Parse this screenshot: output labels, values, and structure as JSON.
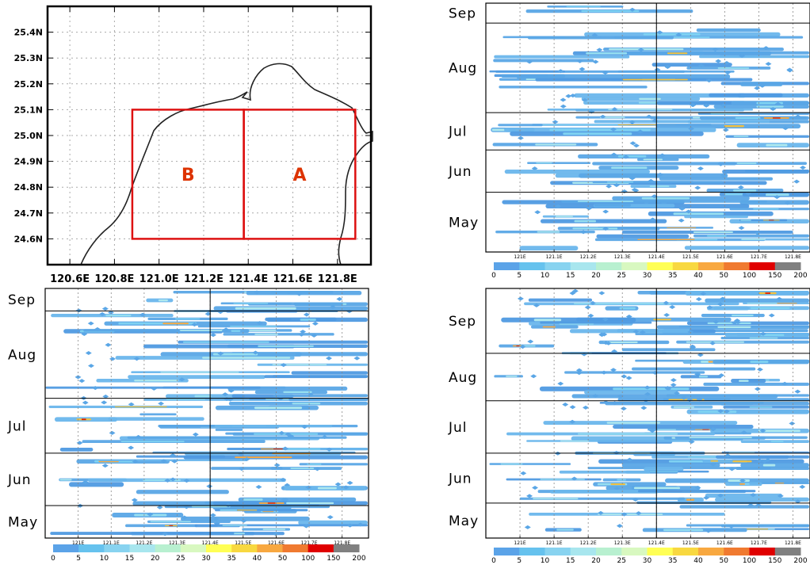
{
  "map": {
    "xticks": [
      "120.6E",
      "120.8E",
      "121.0E",
      "121.2E",
      "121.4E",
      "121.6E",
      "121.8E"
    ],
    "xtick_values": [
      120.6,
      120.8,
      121.0,
      121.2,
      121.4,
      121.6,
      121.8
    ],
    "yticks": [
      "24.6N",
      "24.7N",
      "24.8N",
      "24.9N",
      "25.0N",
      "25.1N",
      "25.2N",
      "25.3N",
      "25.4N"
    ],
    "ytick_values": [
      24.6,
      24.7,
      24.8,
      24.9,
      25.0,
      25.1,
      25.2,
      25.3,
      25.4
    ],
    "xlim": [
      120.5,
      121.95
    ],
    "ylim": [
      24.5,
      25.5
    ],
    "regions": [
      {
        "label": "B",
        "lon": [
          120.88,
          121.38
        ],
        "lat": [
          24.6,
          25.1
        ]
      },
      {
        "label": "A",
        "lon": [
          121.38,
          121.88
        ],
        "lat": [
          24.6,
          25.1
        ]
      }
    ],
    "box_color": "#dd1111",
    "label_color": "#dd3300"
  },
  "chart_data": [
    {
      "type": "heatmap",
      "panel": "top-right",
      "x_ticks": [
        "121E",
        "121.1E",
        "121.2E",
        "121.3E",
        "121.4E",
        "121.5E",
        "121.6E",
        "121.7E",
        "121.8E"
      ],
      "x_tick_values": [
        121.0,
        121.1,
        121.2,
        121.3,
        121.4,
        121.5,
        121.6,
        121.7,
        121.8
      ],
      "xlim": [
        120.9,
        121.85
      ],
      "divider_x": 121.4,
      "y_labels": [
        "Sep",
        "Aug",
        "Jul",
        "Jun",
        "May"
      ],
      "month_boundaries": [
        0.08,
        0.44,
        0.59,
        0.76
      ],
      "grid": "vertical dotted",
      "colorbar": {
        "labels": [
          "0",
          "5",
          "10",
          "15",
          "20",
          "25",
          "30",
          "35",
          "40",
          "50",
          "100",
          "150",
          "200"
        ]
      }
    },
    {
      "type": "heatmap",
      "panel": "bottom-left",
      "x_ticks": [
        "121E",
        "121.1E",
        "121.2E",
        "121.3E",
        "121.4E",
        "121.5E",
        "121.6E",
        "121.7E",
        "121.8E"
      ],
      "x_tick_values": [
        121.0,
        121.1,
        121.2,
        121.3,
        121.4,
        121.5,
        121.6,
        121.7,
        121.8
      ],
      "xlim": [
        120.9,
        121.88
      ],
      "divider_x": 121.4,
      "y_labels": [
        "Sep",
        "Aug",
        "Jul",
        "Jun",
        "May"
      ],
      "month_boundaries": [
        0.09,
        0.44,
        0.66,
        0.87
      ],
      "grid": "vertical dotted",
      "colorbar": {
        "labels": [
          "0",
          "5",
          "10",
          "15",
          "20",
          "25",
          "30",
          "35",
          "40",
          "50",
          "100",
          "150",
          "200"
        ]
      }
    },
    {
      "type": "heatmap",
      "panel": "bottom-right",
      "x_ticks": [
        "121E",
        "121.1E",
        "121.2E",
        "121.3E",
        "121.4E",
        "121.5E",
        "121.6E",
        "121.7E",
        "121.8E"
      ],
      "x_tick_values": [
        121.0,
        121.1,
        121.2,
        121.3,
        121.4,
        121.5,
        121.6,
        121.7,
        121.8
      ],
      "xlim": [
        120.9,
        121.85
      ],
      "divider_x": 121.4,
      "y_labels": [
        "Sep",
        "Aug",
        "Jul",
        "Jun",
        "May"
      ],
      "month_boundaries": [
        0.26,
        0.45,
        0.66,
        0.86
      ],
      "grid": "vertical dotted",
      "colorbar": {
        "labels": [
          "0",
          "5",
          "10",
          "15",
          "20",
          "25",
          "30",
          "35",
          "40",
          "50",
          "100",
          "150",
          "200"
        ]
      }
    }
  ],
  "colorbar_colors": [
    "#5ba3e8",
    "#66c2ee",
    "#88d3f0",
    "#a8e6ee",
    "#b8f0d0",
    "#d8f8c0",
    "#ffff55",
    "#f8d840",
    "#f8a840",
    "#f07a30",
    "#e00000",
    "#808080"
  ]
}
